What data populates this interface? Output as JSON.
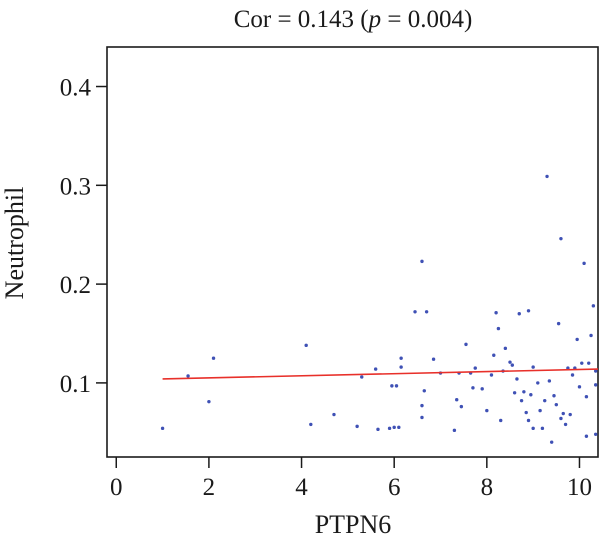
{
  "chart_data": {
    "type": "scatter",
    "title": "Cor = 0.143 (p = 0.004)",
    "title_parts": {
      "prefix": "Cor = 0.143 (",
      "p_symbol": "p",
      "suffix": " = 0.004)"
    },
    "xlabel": "PTPN6",
    "ylabel": "Neutrophil",
    "xlim": [
      -0.2,
      10.4
    ],
    "ylim": [
      0.025,
      0.44
    ],
    "x_ticks": [
      0,
      2,
      4,
      6,
      8,
      10
    ],
    "y_ticks": [
      0.1,
      0.2,
      0.3,
      0.4
    ],
    "x_tick_labels": [
      "0",
      "2",
      "4",
      "6",
      "8",
      "10"
    ],
    "y_tick_labels": [
      "0.1",
      "0.2",
      "0.3",
      "0.4"
    ],
    "grid": false,
    "point_color": "#3f51b5",
    "line_color": "#e8302a",
    "regression_line": {
      "x": [
        1.0,
        10.4
      ],
      "y": [
        0.104,
        0.114
      ]
    },
    "points": [
      {
        "x": 1.0,
        "y": 0.054
      },
      {
        "x": 1.55,
        "y": 0.107
      },
      {
        "x": 2.0,
        "y": 0.081
      },
      {
        "x": 2.1,
        "y": 0.125
      },
      {
        "x": 4.1,
        "y": 0.138
      },
      {
        "x": 4.2,
        "y": 0.058
      },
      {
        "x": 4.7,
        "y": 0.068
      },
      {
        "x": 5.2,
        "y": 0.056
      },
      {
        "x": 5.3,
        "y": 0.106
      },
      {
        "x": 5.6,
        "y": 0.114
      },
      {
        "x": 5.65,
        "y": 0.053
      },
      {
        "x": 5.9,
        "y": 0.054
      },
      {
        "x": 5.95,
        "y": 0.097
      },
      {
        "x": 6.0,
        "y": 0.055
      },
      {
        "x": 6.05,
        "y": 0.097
      },
      {
        "x": 6.1,
        "y": 0.055
      },
      {
        "x": 6.15,
        "y": 0.116
      },
      {
        "x": 6.15,
        "y": 0.125
      },
      {
        "x": 6.45,
        "y": 0.172
      },
      {
        "x": 6.6,
        "y": 0.223
      },
      {
        "x": 6.6,
        "y": 0.065
      },
      {
        "x": 6.6,
        "y": 0.077
      },
      {
        "x": 6.65,
        "y": 0.092
      },
      {
        "x": 6.7,
        "y": 0.172
      },
      {
        "x": 6.85,
        "y": 0.124
      },
      {
        "x": 7.0,
        "y": 0.11
      },
      {
        "x": 7.3,
        "y": 0.052
      },
      {
        "x": 7.35,
        "y": 0.083
      },
      {
        "x": 7.4,
        "y": 0.11
      },
      {
        "x": 7.45,
        "y": 0.076
      },
      {
        "x": 7.55,
        "y": 0.139
      },
      {
        "x": 7.65,
        "y": 0.11
      },
      {
        "x": 7.7,
        "y": 0.095
      },
      {
        "x": 7.75,
        "y": 0.115
      },
      {
        "x": 7.9,
        "y": 0.094
      },
      {
        "x": 8.0,
        "y": 0.072
      },
      {
        "x": 8.1,
        "y": 0.108
      },
      {
        "x": 8.15,
        "y": 0.128
      },
      {
        "x": 8.2,
        "y": 0.171
      },
      {
        "x": 8.25,
        "y": 0.155
      },
      {
        "x": 8.3,
        "y": 0.062
      },
      {
        "x": 8.35,
        "y": 0.112
      },
      {
        "x": 8.4,
        "y": 0.135
      },
      {
        "x": 8.5,
        "y": 0.121
      },
      {
        "x": 8.55,
        "y": 0.118
      },
      {
        "x": 8.6,
        "y": 0.09
      },
      {
        "x": 8.65,
        "y": 0.104
      },
      {
        "x": 8.7,
        "y": 0.17
      },
      {
        "x": 8.75,
        "y": 0.082
      },
      {
        "x": 8.8,
        "y": 0.091
      },
      {
        "x": 8.85,
        "y": 0.07
      },
      {
        "x": 8.9,
        "y": 0.173
      },
      {
        "x": 8.9,
        "y": 0.062
      },
      {
        "x": 8.95,
        "y": 0.088
      },
      {
        "x": 9.0,
        "y": 0.116
      },
      {
        "x": 9.0,
        "y": 0.054
      },
      {
        "x": 9.1,
        "y": 0.1
      },
      {
        "x": 9.15,
        "y": 0.072
      },
      {
        "x": 9.2,
        "y": 0.054
      },
      {
        "x": 9.25,
        "y": 0.082
      },
      {
        "x": 9.3,
        "y": 0.309
      },
      {
        "x": 9.35,
        "y": 0.102
      },
      {
        "x": 9.4,
        "y": 0.04
      },
      {
        "x": 9.45,
        "y": 0.087
      },
      {
        "x": 9.5,
        "y": 0.078
      },
      {
        "x": 9.55,
        "y": 0.16
      },
      {
        "x": 9.6,
        "y": 0.246
      },
      {
        "x": 9.6,
        "y": 0.064
      },
      {
        "x": 9.65,
        "y": 0.069
      },
      {
        "x": 9.7,
        "y": 0.058
      },
      {
        "x": 9.75,
        "y": 0.115
      },
      {
        "x": 9.8,
        "y": 0.068
      },
      {
        "x": 9.85,
        "y": 0.108
      },
      {
        "x": 9.9,
        "y": 0.115
      },
      {
        "x": 9.95,
        "y": 0.144
      },
      {
        "x": 10.0,
        "y": 0.096
      },
      {
        "x": 10.05,
        "y": 0.12
      },
      {
        "x": 10.1,
        "y": 0.221
      },
      {
        "x": 10.15,
        "y": 0.086
      },
      {
        "x": 10.15,
        "y": 0.046
      },
      {
        "x": 10.2,
        "y": 0.12
      },
      {
        "x": 10.25,
        "y": 0.148
      },
      {
        "x": 10.3,
        "y": 0.178
      },
      {
        "x": 10.35,
        "y": 0.098
      },
      {
        "x": 10.35,
        "y": 0.048
      },
      {
        "x": 10.35,
        "y": 0.112
      }
    ]
  }
}
